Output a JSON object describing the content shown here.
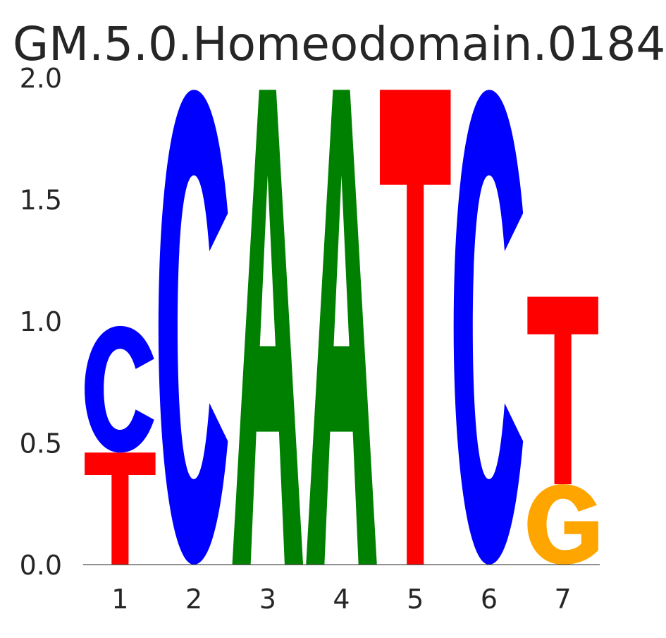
{
  "chart_data": {
    "type": "sequence-logo",
    "title": "GM.5.0.Homeodomain.0184",
    "xlabel": "",
    "ylabel": "",
    "ylim": [
      0,
      2.0
    ],
    "yticks": [
      "0.0",
      "0.5",
      "1.0",
      "1.5",
      "2.0"
    ],
    "yticks_values": [
      0,
      0.5,
      1.0,
      1.5,
      2.0
    ],
    "positions": [
      "1",
      "2",
      "3",
      "4",
      "5",
      "6",
      "7"
    ],
    "colors": {
      "A": "#008000",
      "C": "#0000ff",
      "G": "#ffa500",
      "T": "#ff0000"
    },
    "stacks": [
      [
        {
          "letter": "T",
          "height": 0.46
        },
        {
          "letter": "C",
          "height": 0.52
        }
      ],
      [
        {
          "letter": "C",
          "height": 1.95
        }
      ],
      [
        {
          "letter": "A",
          "height": 1.95
        }
      ],
      [
        {
          "letter": "A",
          "height": 1.95
        }
      ],
      [
        {
          "letter": "T",
          "height": 1.95
        }
      ],
      [
        {
          "letter": "C",
          "height": 1.95
        }
      ],
      [
        {
          "letter": "G",
          "height": 0.33
        },
        {
          "letter": "T",
          "height": 0.77
        }
      ]
    ]
  }
}
